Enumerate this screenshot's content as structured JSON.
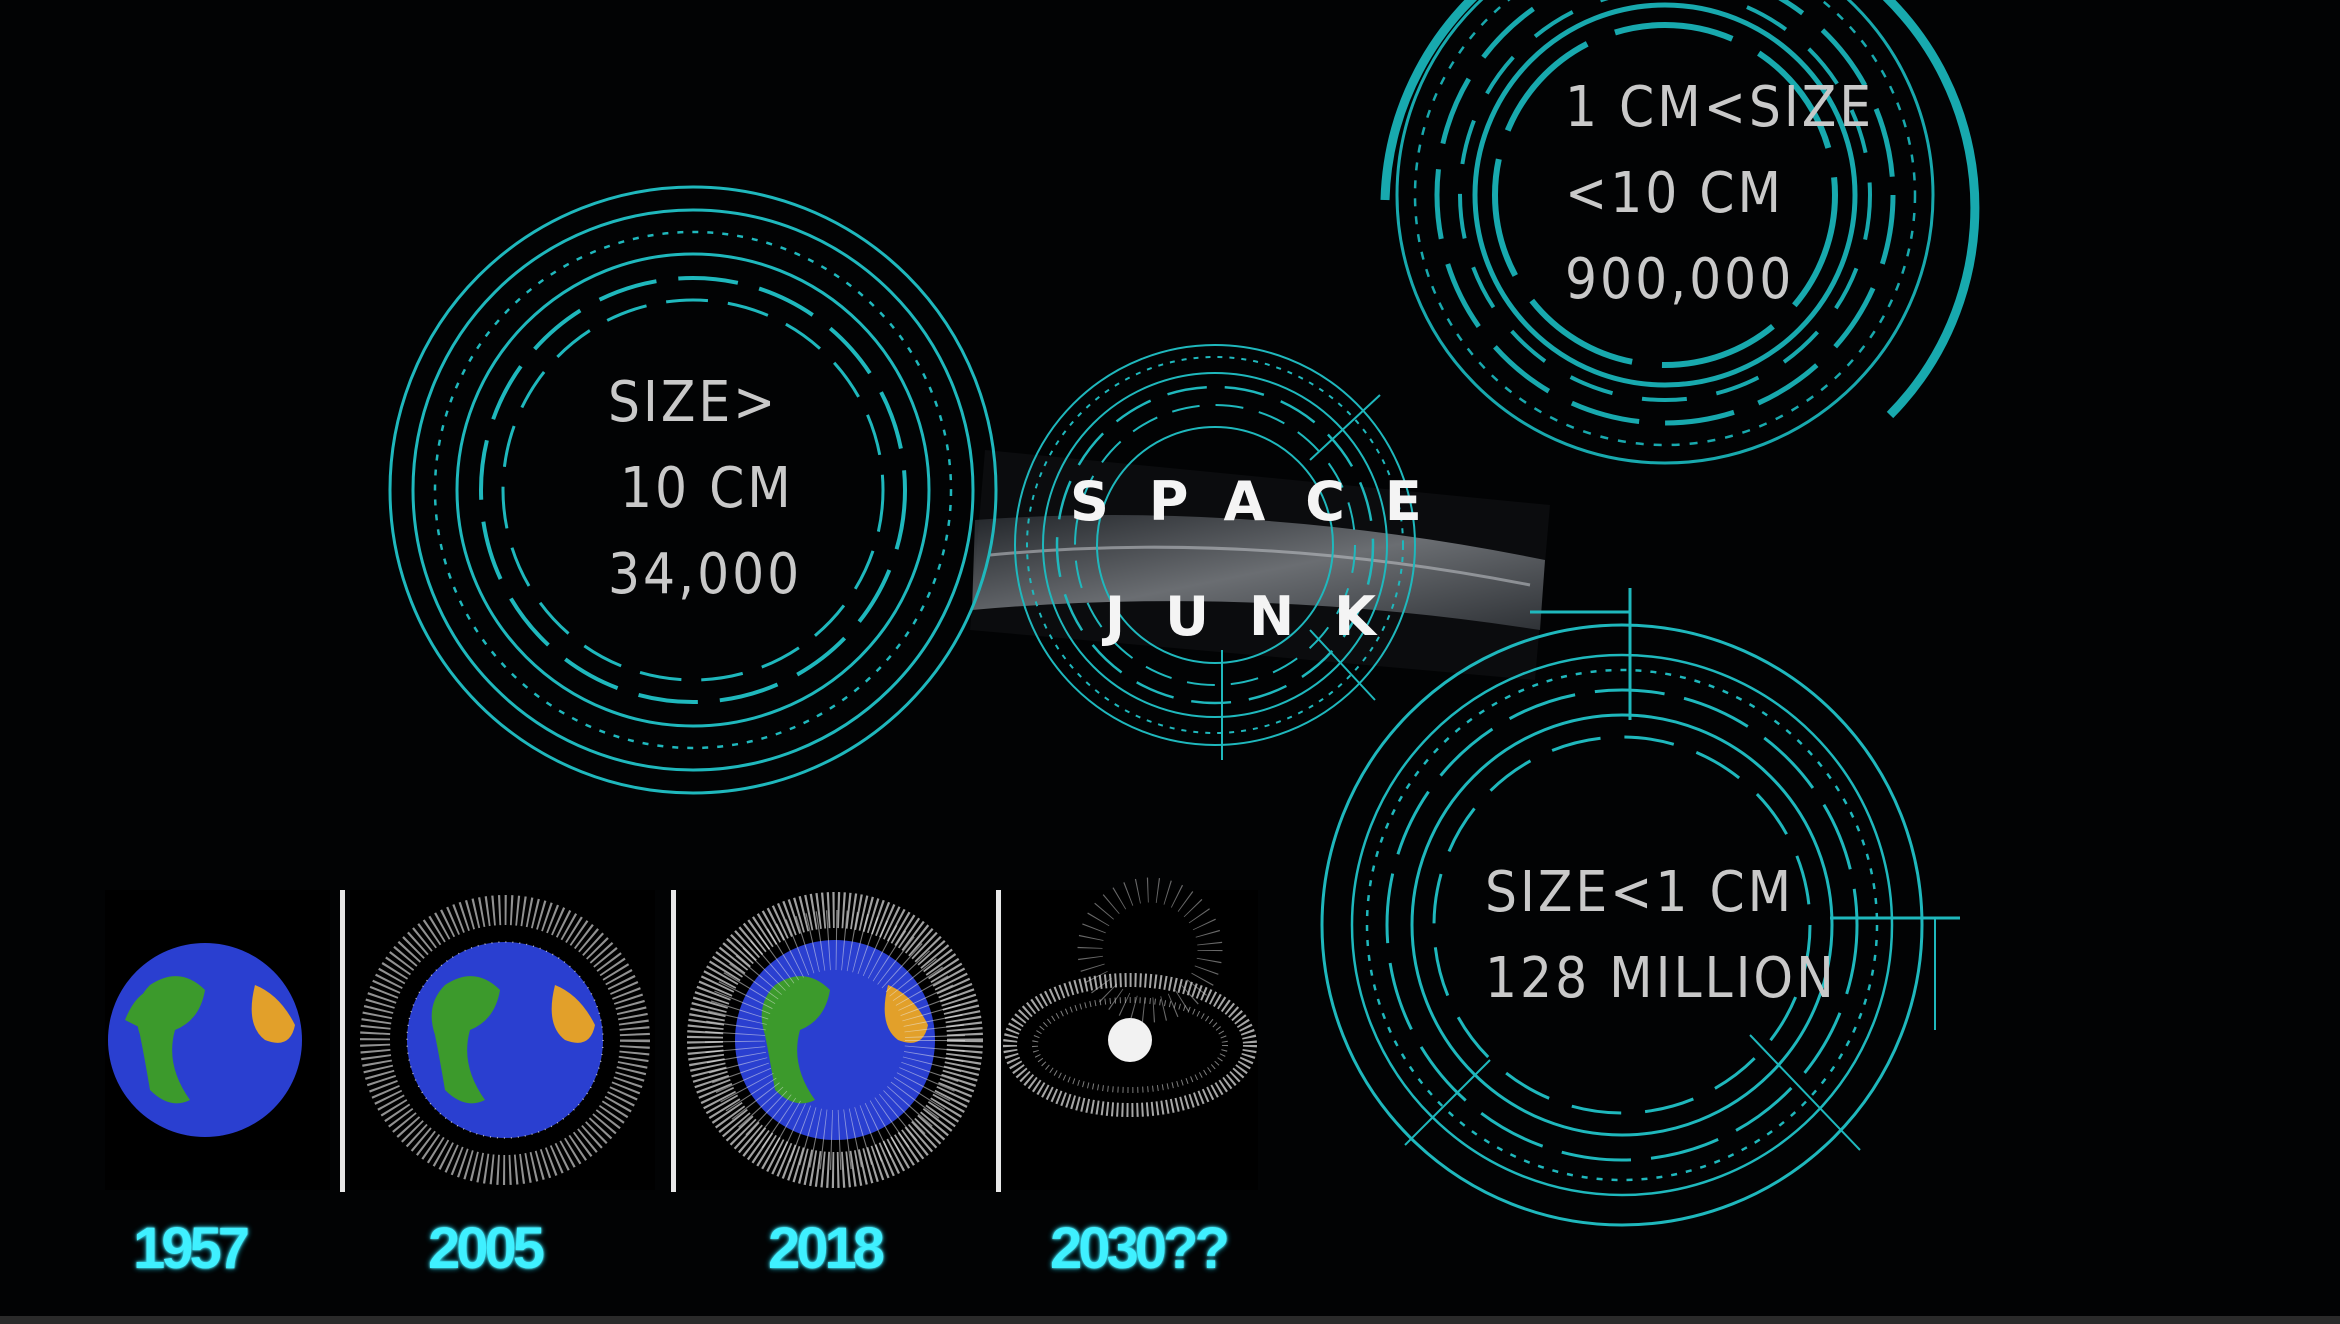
{
  "title": {
    "line1": "SPACE",
    "line2": "JUNK"
  },
  "categories": [
    {
      "line1": "SIZE>",
      "line2": "10 CM",
      "line3": "34,000"
    },
    {
      "line1": "1 CM<SIZE",
      "line2": "<10 CM",
      "line3": "900,000"
    },
    {
      "line1": "SIZE<1  CM",
      "line2": "128 MILLION"
    }
  ],
  "timeline": [
    {
      "year": "1957",
      "debris": "none"
    },
    {
      "year": "2005",
      "debris": "moderate"
    },
    {
      "year": "2018",
      "debris": "heavy"
    },
    {
      "year": "2030??",
      "debris": "debris-only"
    }
  ],
  "colors": {
    "ring": "#1fb8bd",
    "year": "#3ff0ff",
    "ocean": "#2a3fd0",
    "land": "#3c9a2c",
    "desert": "#e2a02a"
  }
}
